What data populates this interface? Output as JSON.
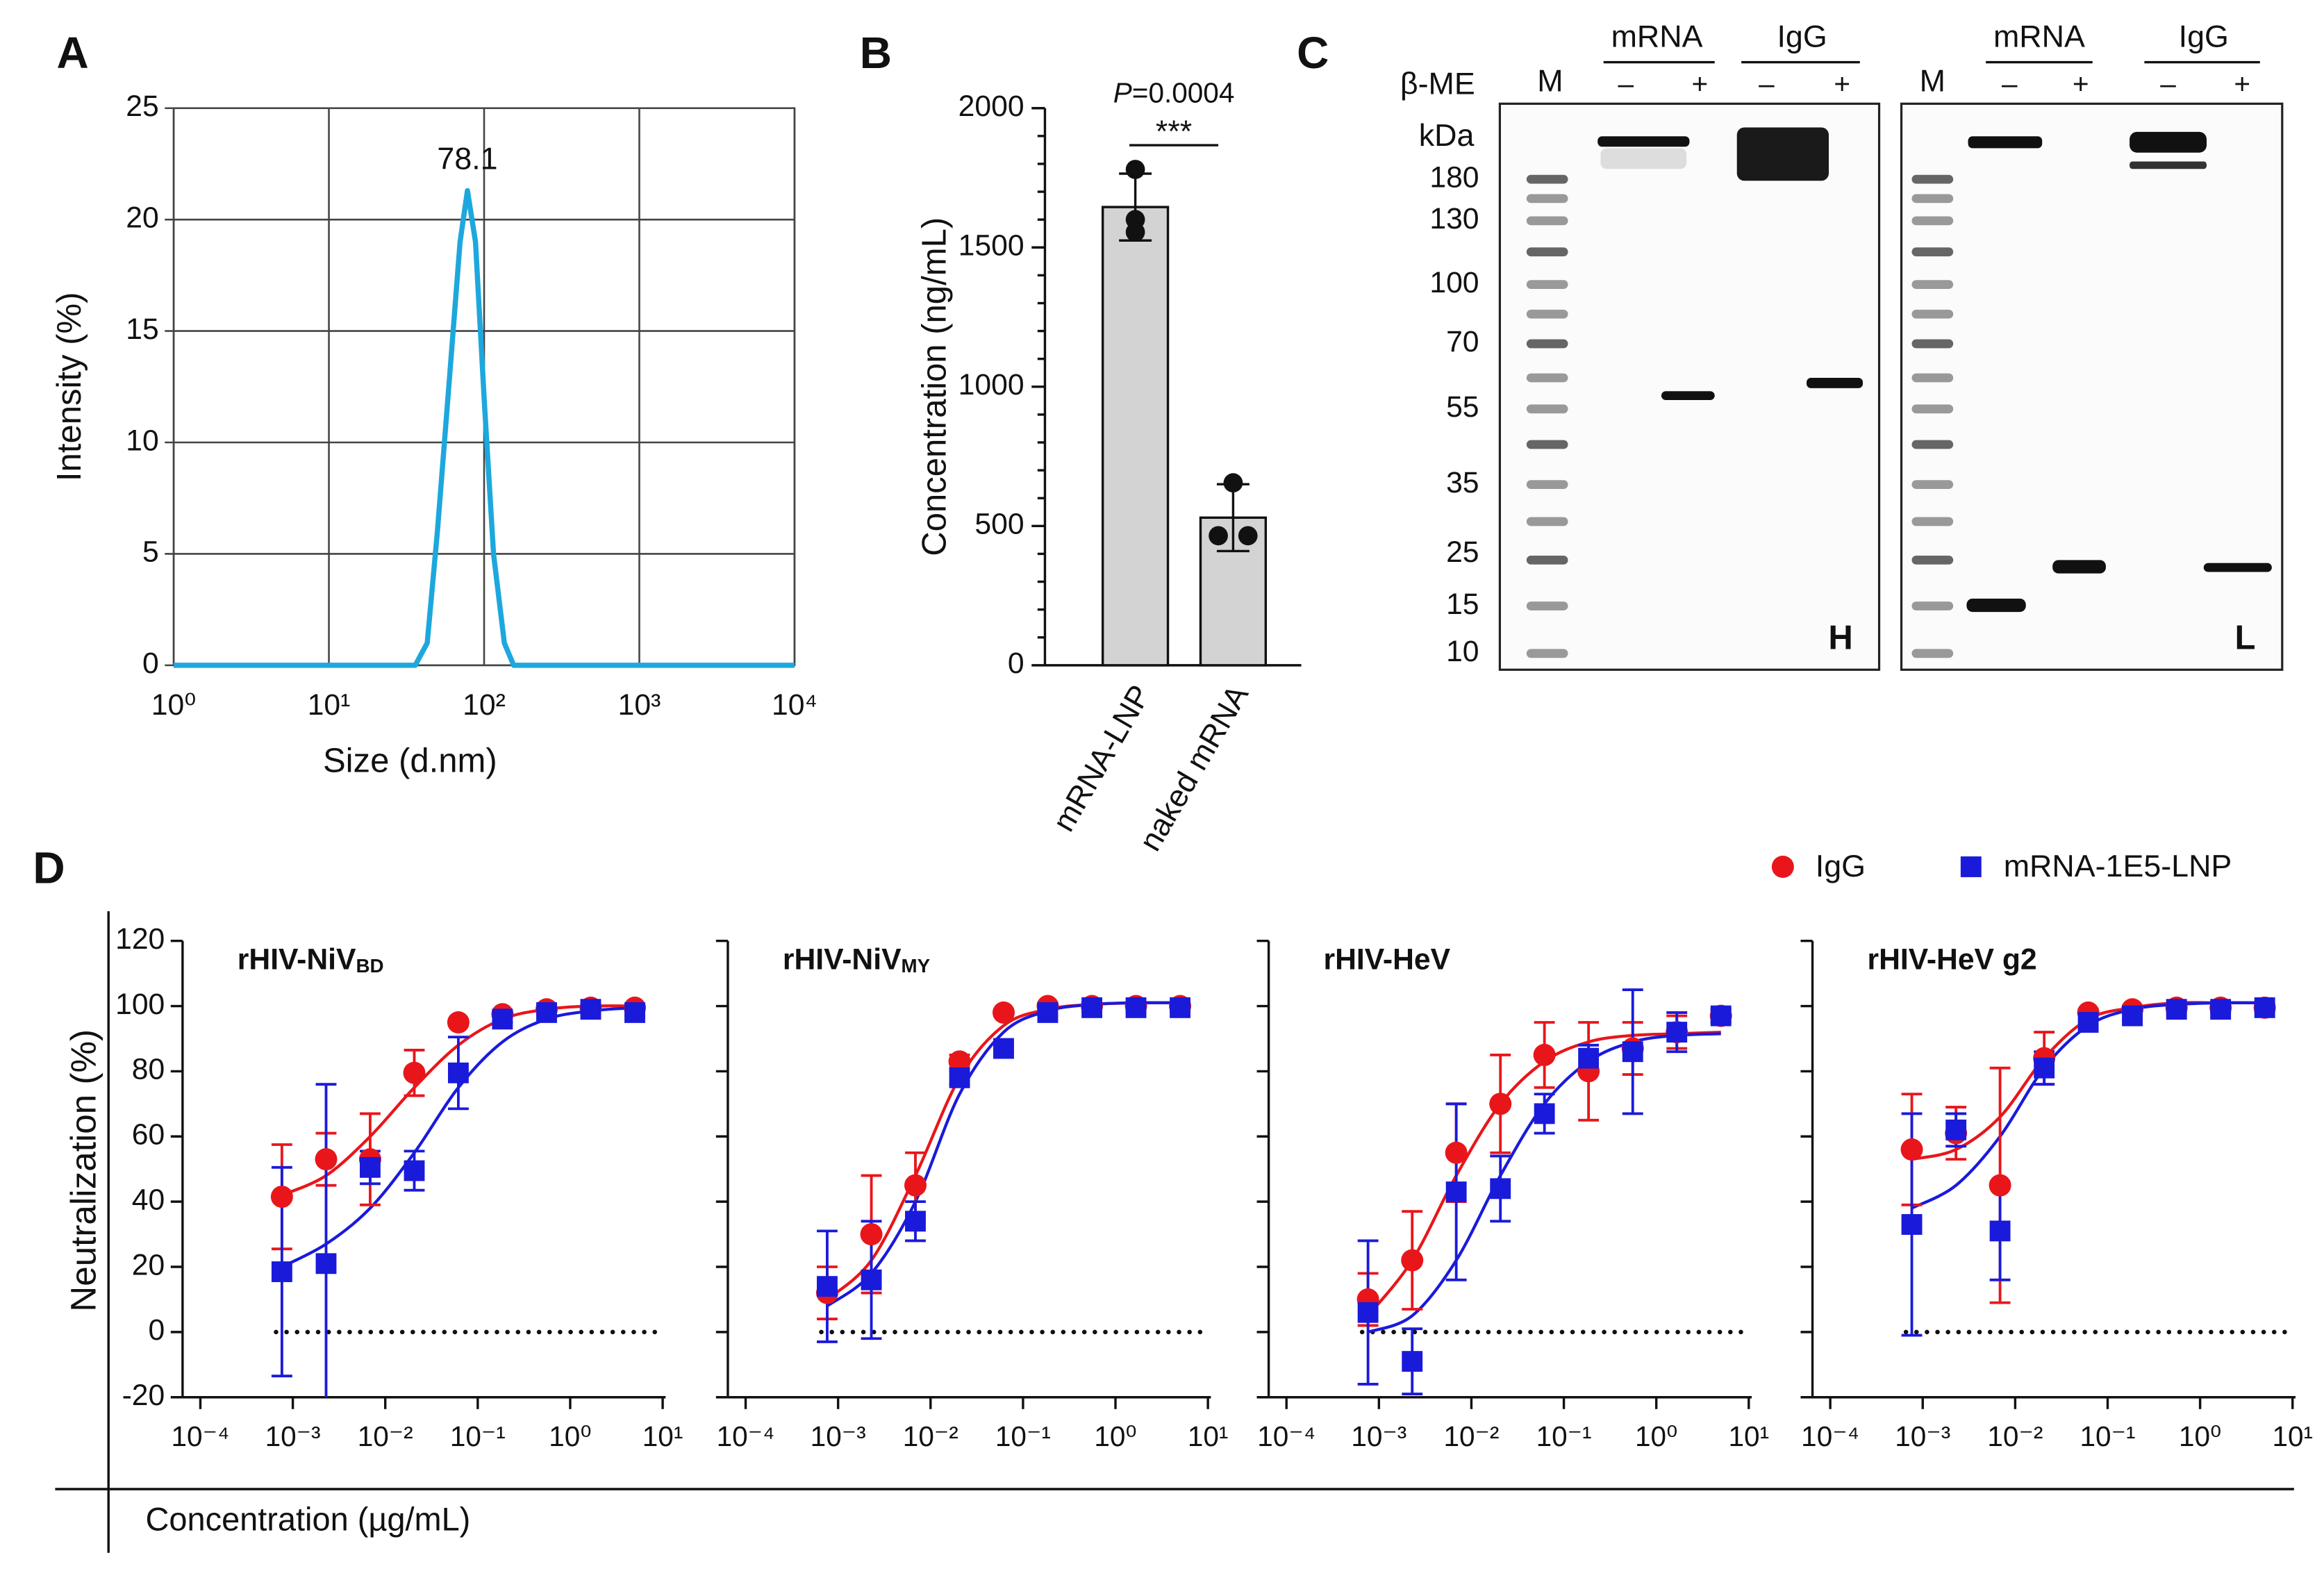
{
  "panel_labels": [
    "A",
    "B",
    "C",
    "D"
  ],
  "chart_data": [
    {
      "type": "line",
      "x": [
        1,
        36,
        43,
        50,
        60,
        70,
        78.1,
        88,
        100,
        115,
        135,
        155,
        10000
      ],
      "values": [
        0,
        0,
        1,
        6,
        13,
        19,
        21.3,
        19,
        12,
        5,
        1,
        0,
        0
      ],
      "color": "#1da8dd",
      "xlim": [
        1,
        10000
      ],
      "log_x": true,
      "xticks": [
        {
          "value": 1,
          "label": "10⁰"
        },
        {
          "value": 10,
          "label": "10¹"
        },
        {
          "value": 100,
          "label": "10²"
        },
        {
          "value": 1000,
          "label": "10³"
        },
        {
          "value": 10000,
          "label": "10⁴"
        }
      ],
      "ylim": [
        0,
        25
      ],
      "yticks": [
        0,
        5,
        10,
        15,
        20,
        25
      ],
      "grid": true,
      "x_label": "Size (d.nm)",
      "y_label": "Intensity (%)",
      "annotation": "78.1"
    },
    {
      "type": "bar",
      "categories": [
        "mRNA-LNP",
        "naked mRNA"
      ],
      "values": [
        1645,
        530
      ],
      "errors": [
        120,
        120
      ],
      "points": [
        [
          1780,
          1600,
          1555
        ],
        [
          655,
          465,
          465
        ]
      ],
      "color": "#d3d3d3",
      "ylim": [
        0,
        2000
      ],
      "yticks": [
        0,
        500,
        1000,
        1500,
        2000
      ],
      "yticks_minor": [
        100,
        200,
        300,
        400,
        600,
        700,
        800,
        900,
        1100,
        1200,
        1300,
        1400,
        1600,
        1700,
        1800,
        1900
      ],
      "y_label": "Concentration (ng/mL)",
      "p_symbol": "P",
      "p_text": "=0.0004",
      "significance": "***"
    },
    {
      "type": "scatter",
      "title": "rHIV-NiV",
      "title_sub": "BD",
      "show_ytick_labels": true,
      "x": [
        0.000762,
        0.00229,
        0.00686,
        0.0206,
        0.0617,
        0.185,
        0.556,
        1.667,
        5
      ],
      "xlim": [
        0.0001,
        10
      ],
      "log_x": true,
      "xticks": [
        {
          "value": 0.0001,
          "label": "10⁻⁴"
        },
        {
          "value": 0.001,
          "label": "10⁻³"
        },
        {
          "value": 0.01,
          "label": "10⁻²"
        },
        {
          "value": 0.1,
          "label": "10⁻¹"
        },
        {
          "value": 1,
          "label": "10⁰"
        },
        {
          "value": 10,
          "label": "10¹"
        }
      ],
      "ylim": [
        -20,
        120
      ],
      "yticks": [
        -20,
        0,
        20,
        40,
        60,
        80,
        100,
        120
      ],
      "reference_line": 0,
      "series": [
        {
          "name": "IgG",
          "color": "#e8161b",
          "marker": "circle",
          "values": [
            41.5,
            53,
            53,
            79.5,
            95,
            97.5,
            99,
            99.5,
            99.5
          ],
          "errors": [
            16,
            8,
            14,
            7,
            1,
            1,
            1,
            1,
            1
          ],
          "fit": [
            42,
            48,
            60,
            75,
            88,
            96,
            99,
            100,
            100
          ]
        },
        {
          "name": "mRNA-1E5-LNP",
          "color": "#1a1adb",
          "marker": "square",
          "values": [
            18.5,
            21,
            50.5,
            49.5,
            79.5,
            96,
            98,
            99,
            98
          ],
          "errors": [
            32,
            55,
            5,
            6,
            11,
            1,
            1,
            1,
            1
          ],
          "fit": [
            20,
            27,
            38,
            55,
            75,
            89,
            96,
            98.5,
            99.5
          ]
        }
      ]
    },
    {
      "type": "scatter",
      "title": "rHIV-NiV",
      "title_sub": "MY",
      "show_ytick_labels": false,
      "x": [
        0.000762,
        0.00229,
        0.00686,
        0.0206,
        0.0617,
        0.185,
        0.556,
        1.667,
        5
      ],
      "xlim": [
        0.0001,
        10
      ],
      "log_x": true,
      "xticks": [
        {
          "value": 0.0001,
          "label": "10⁻⁴"
        },
        {
          "value": 0.001,
          "label": "10⁻³"
        },
        {
          "value": 0.01,
          "label": "10⁻²"
        },
        {
          "value": 0.1,
          "label": "10⁻¹"
        },
        {
          "value": 1,
          "label": "10⁰"
        },
        {
          "value": 10,
          "label": "10¹"
        }
      ],
      "ylim": [
        -20,
        120
      ],
      "yticks": [
        -20,
        0,
        20,
        40,
        60,
        80,
        100,
        120
      ],
      "reference_line": 0,
      "series": [
        {
          "name": "IgG",
          "color": "#e8161b",
          "marker": "circle",
          "values": [
            12,
            30,
            45,
            83,
            98,
            100,
            100,
            100,
            100
          ],
          "errors": [
            8,
            18,
            10,
            2,
            1,
            1,
            1,
            1,
            1
          ],
          "fit": [
            10,
            22,
            48,
            78,
            94,
            99,
            100.5,
            101,
            101
          ]
        },
        {
          "name": "mRNA-1E5-LNP",
          "color": "#1a1adb",
          "marker": "square",
          "values": [
            14,
            16,
            34,
            78,
            87,
            98,
            99.5,
            99.5,
            99.5
          ],
          "errors": [
            17,
            18,
            6,
            2,
            1,
            1,
            1,
            1,
            1
          ],
          "fit": [
            8,
            18,
            40,
            73,
            92,
            98.5,
            100.5,
            101,
            101
          ]
        }
      ]
    },
    {
      "type": "scatter",
      "title": "rHIV-HeV",
      "title_sub": "",
      "show_ytick_labels": false,
      "x": [
        0.000762,
        0.00229,
        0.00686,
        0.0206,
        0.0617,
        0.185,
        0.556,
        1.667,
        5
      ],
      "xlim": [
        0.0001,
        10
      ],
      "log_x": true,
      "xticks": [
        {
          "value": 0.0001,
          "label": "10⁻⁴"
        },
        {
          "value": 0.001,
          "label": "10⁻³"
        },
        {
          "value": 0.01,
          "label": "10⁻²"
        },
        {
          "value": 0.1,
          "label": "10⁻¹"
        },
        {
          "value": 1,
          "label": "10⁰"
        },
        {
          "value": 10,
          "label": "10¹"
        }
      ],
      "ylim": [
        -20,
        120
      ],
      "yticks": [
        -20,
        0,
        20,
        40,
        60,
        80,
        100,
        120
      ],
      "reference_line": 0,
      "series": [
        {
          "name": "IgG",
          "color": "#e8161b",
          "marker": "circle",
          "values": [
            10,
            22,
            55,
            70,
            85,
            80,
            87,
            92,
            97
          ],
          "errors": [
            8,
            15,
            15,
            15,
            10,
            15,
            8,
            5,
            2
          ],
          "fit": [
            5,
            22,
            48,
            70,
            83,
            89,
            91,
            91.5,
            92
          ]
        },
        {
          "name": "mRNA-1E5-LNP",
          "color": "#1a1adb",
          "marker": "square",
          "values": [
            6,
            -9,
            43,
            44,
            67,
            84,
            86,
            92,
            97
          ],
          "errors": [
            22,
            10,
            27,
            10,
            6,
            4,
            19,
            6,
            2
          ],
          "fit": [
            0,
            5,
            22,
            48,
            70,
            83,
            89,
            91,
            91.5
          ]
        }
      ]
    },
    {
      "type": "scatter",
      "title": "rHIV-HeV g2",
      "title_sub": "",
      "show_ytick_labels": false,
      "x": [
        0.000762,
        0.00229,
        0.00686,
        0.0206,
        0.0617,
        0.185,
        0.556,
        1.667,
        5
      ],
      "xlim": [
        0.0001,
        10
      ],
      "log_x": true,
      "xticks": [
        {
          "value": 0.0001,
          "label": "10⁻⁴"
        },
        {
          "value": 0.001,
          "label": "10⁻³"
        },
        {
          "value": 0.01,
          "label": "10⁻²"
        },
        {
          "value": 0.1,
          "label": "10⁻¹"
        },
        {
          "value": 1,
          "label": "10⁰"
        },
        {
          "value": 10,
          "label": "10¹"
        }
      ],
      "ylim": [
        -20,
        120
      ],
      "yticks": [
        -20,
        0,
        20,
        40,
        60,
        80,
        100,
        120
      ],
      "reference_line": 0,
      "series": [
        {
          "name": "IgG",
          "color": "#e8161b",
          "marker": "circle",
          "values": [
            56,
            61,
            45,
            84,
            98,
            99,
            99.5,
            99.5,
            99.5
          ],
          "errors": [
            17,
            8,
            36,
            8,
            1,
            1,
            1,
            1,
            1
          ],
          "fit": [
            53,
            56,
            66,
            84,
            96,
            99.5,
            101,
            101,
            101
          ]
        },
        {
          "name": "mRNA-1E5-LNP",
          "color": "#1a1adb",
          "marker": "square",
          "values": [
            33,
            62,
            31,
            81,
            95,
            97,
            99,
            99,
            99.5
          ],
          "errors": [
            34,
            5,
            15,
            5,
            2,
            1,
            1,
            1,
            1
          ],
          "fit": [
            38,
            45,
            60,
            81,
            94,
            99,
            100.5,
            101,
            101
          ]
        }
      ]
    }
  ],
  "shared": {
    "y_label": "Neutralization (%)",
    "x_label": "Concentration (µg/mL)"
  },
  "gel": {
    "reagent": "β-ME",
    "unit": "kDa",
    "marker_lane": "M",
    "groups": [
      "mRNA",
      "IgG"
    ],
    "minus": "–",
    "plus": "+",
    "markers": [
      "180",
      "130",
      "100",
      "70",
      "55",
      "35",
      "25",
      "15",
      "10"
    ],
    "chains": [
      "H",
      "L"
    ]
  }
}
